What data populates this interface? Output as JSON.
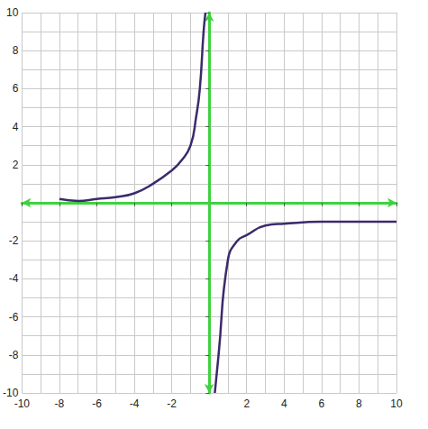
{
  "chart_data": {
    "type": "line",
    "xlim": [
      -10,
      10
    ],
    "ylim": [
      -10,
      10
    ],
    "xticks": [
      -10,
      -8,
      -6,
      -4,
      -2,
      2,
      4,
      6,
      8,
      10
    ],
    "yticks": [
      -10,
      -8,
      -6,
      -4,
      -2,
      2,
      4,
      6,
      8,
      10
    ],
    "grid": true,
    "marker": "none",
    "series": [
      {
        "color": "#3b2a6b",
        "x": [
          -8,
          -7,
          -6,
          -5,
          -4,
          -3,
          -2,
          -1.5,
          -1,
          -0.7,
          -0.5,
          -0.3,
          -0.2
        ],
        "values": [
          0.2,
          0.1,
          0.2,
          0.3,
          0.5,
          1,
          1.7,
          2.2,
          3,
          4.5,
          6,
          9,
          10
        ]
      },
      {
        "color": "#3b2a6b",
        "x": [
          0.3,
          0.5,
          1,
          1.5,
          2,
          3,
          4,
          6,
          8,
          10
        ],
        "values": [
          -10,
          -8,
          -3,
          -2,
          -1.7,
          -1.2,
          -1.1,
          -1,
          -1,
          -1
        ]
      }
    ]
  }
}
